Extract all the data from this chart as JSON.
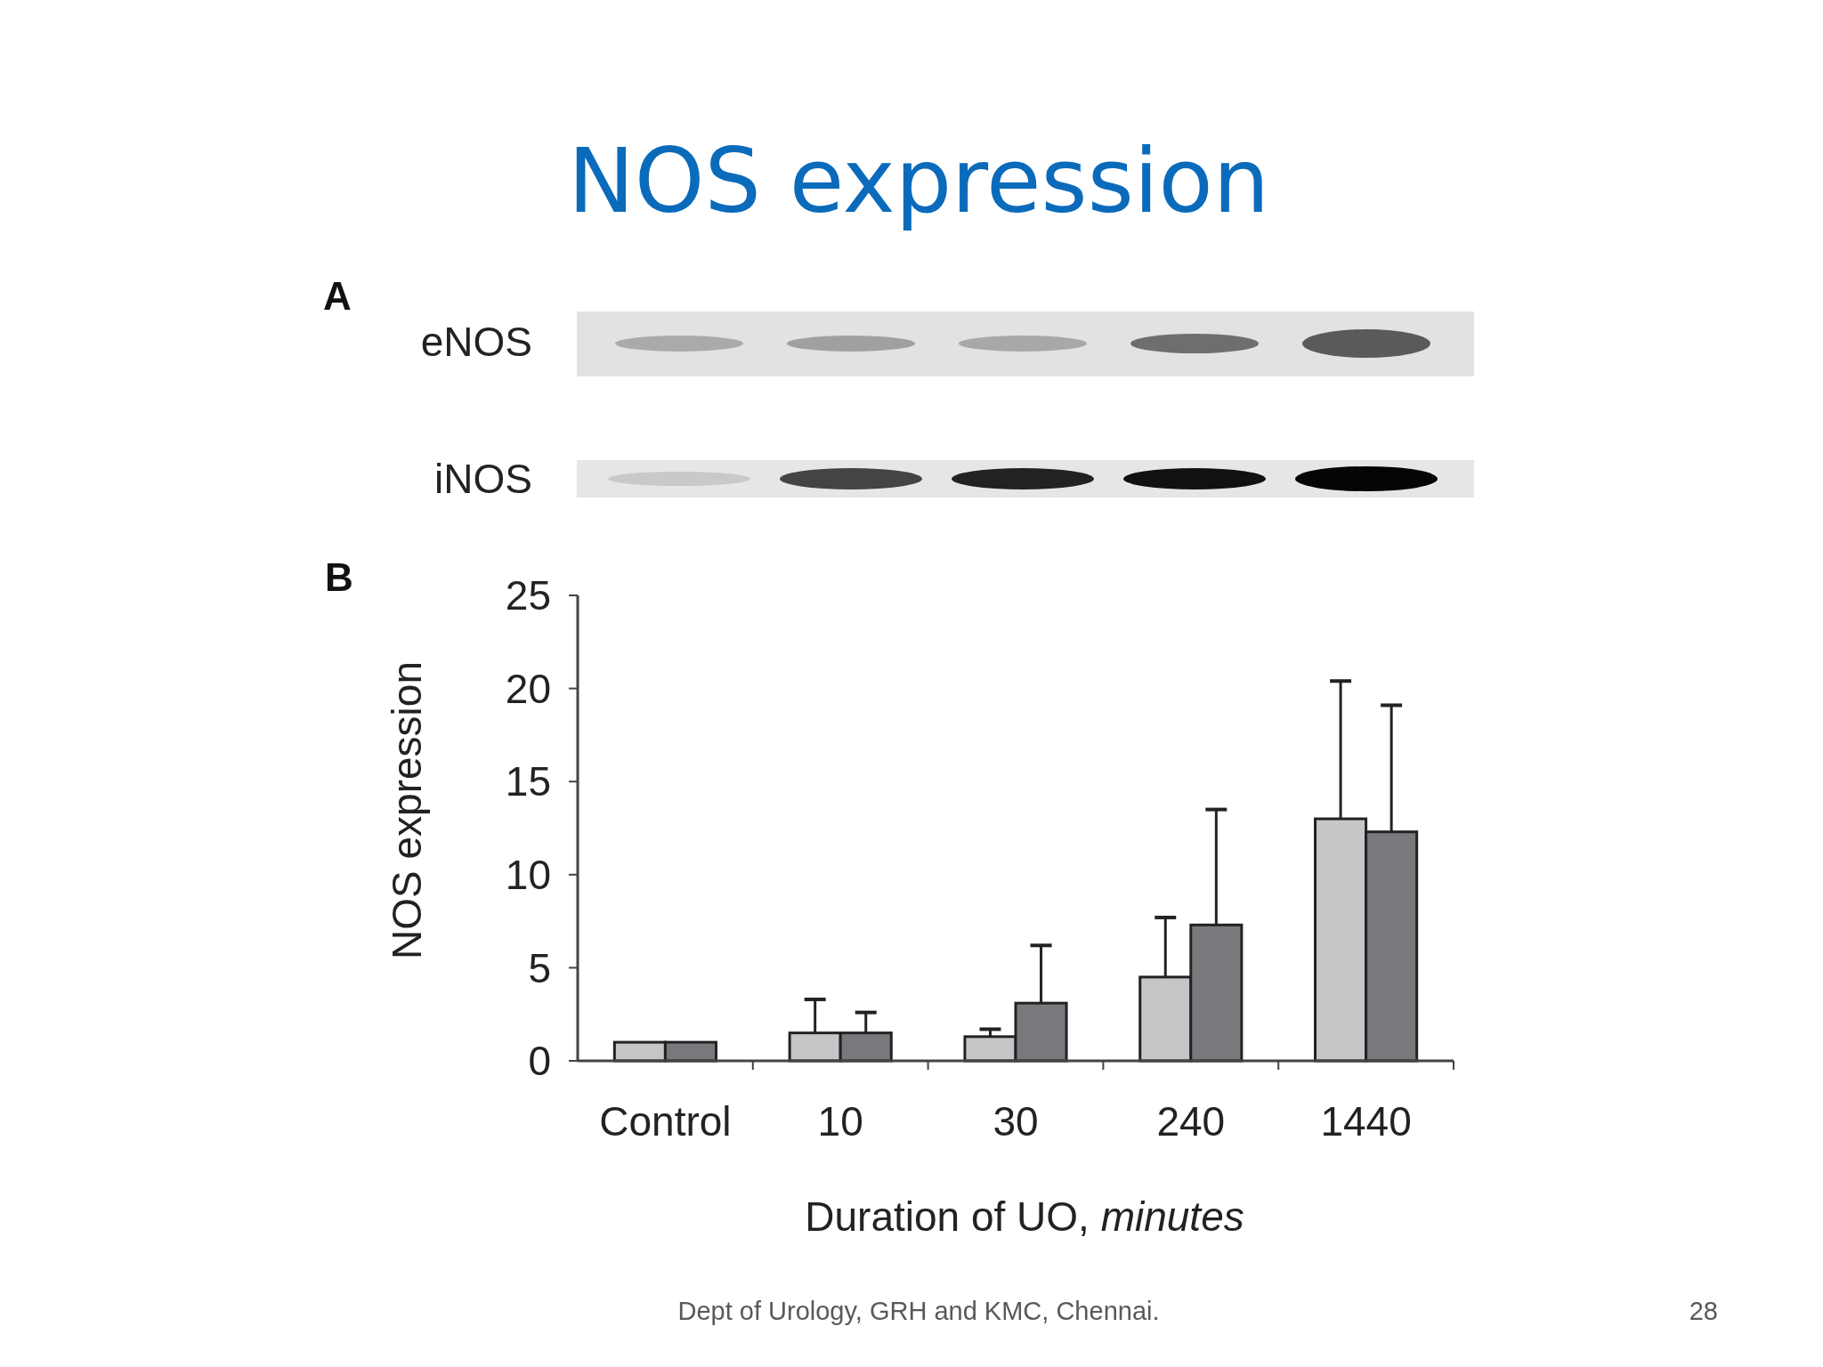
{
  "chart_data": {
    "type": "bar",
    "title": "NOS expression",
    "xlabel": "Duration of UO, minutes",
    "ylabel": "NOS expression",
    "categories": [
      "Control",
      "10",
      "30",
      "240",
      "1440"
    ],
    "series": [
      {
        "color": "#c6c6c8",
        "values": [
          1.0,
          1.5,
          1.3,
          4.5,
          13.0
        ],
        "errors": [
          null,
          [
            1.5,
            3.3
          ],
          [
            1.3,
            1.7
          ],
          [
            4.5,
            7.7
          ],
          [
            13.0,
            20.4
          ]
        ]
      },
      {
        "color": "#7a787c",
        "values": [
          1.0,
          1.5,
          3.1,
          7.3,
          12.3
        ],
        "errors": [
          null,
          [
            1.5,
            2.6
          ],
          [
            3.1,
            6.2
          ],
          [
            7.3,
            13.5
          ],
          [
            12.3,
            19.1
          ]
        ]
      }
    ],
    "ylim": [
      0,
      25
    ],
    "yticks": [
      0,
      5,
      10,
      15,
      20,
      25
    ],
    "grid": false,
    "annotations": [
      "A",
      "eNOS",
      "iNOS",
      "B",
      "Dept of Urology, GRH and KMC, Chennai.",
      "28"
    ]
  }
}
